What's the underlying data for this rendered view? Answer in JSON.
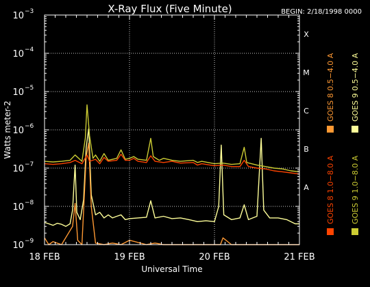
{
  "chart_data": {
    "type": "line",
    "title": "X-Ray Flux (Five Minute)",
    "begin_label": "BEGIN: 2/18/1998 0000",
    "xlabel": "Universal Time",
    "ylabel": "Watts meter-2",
    "y_scale": "log",
    "ylim": [
      1e-09,
      0.001
    ],
    "xlim_days": [
      0,
      3
    ],
    "y_ticks": [
      {
        "base": "10",
        "exp": "−3",
        "value": 0.001
      },
      {
        "base": "10",
        "exp": "−4",
        "value": 0.0001
      },
      {
        "base": "10",
        "exp": "−5",
        "value": 1e-05
      },
      {
        "base": "10",
        "exp": "−6",
        "value": 1e-06
      },
      {
        "base": "10",
        "exp": "−7",
        "value": 1e-07
      },
      {
        "base": "10",
        "exp": "−8",
        "value": 1e-08
      },
      {
        "base": "10",
        "exp": "−9",
        "value": 1e-09
      }
    ],
    "x_ticks": [
      {
        "label": "18 FEB",
        "day": 0
      },
      {
        "label": "19 FEB",
        "day": 1
      },
      {
        "label": "20 FEB",
        "day": 2
      },
      {
        "label": "21 FEB",
        "day": 3
      }
    ],
    "flare_classes": [
      {
        "label": "X",
        "value": 0.0001
      },
      {
        "label": "M",
        "value": 1e-05
      },
      {
        "label": "C",
        "value": 1e-06
      },
      {
        "label": "B",
        "value": 1e-07
      },
      {
        "label": "A",
        "value": 1e-08
      }
    ],
    "legend": [
      {
        "name": "GOES 8 1.0−8.0 A",
        "color": "#ff4400"
      },
      {
        "name": "GOES 8 0.5−4.0 A",
        "color": "#ff9933"
      },
      {
        "name": "GOES 9 1.0−8.0 A",
        "color": "#cccc33"
      },
      {
        "name": "GOES 9 0.5−4.0 A",
        "color": "#ffff99"
      }
    ],
    "series": [
      {
        "name": "GOES 8 1.0−8.0 A",
        "color": "#ff4400",
        "points": [
          [
            0,
            1.3e-07
          ],
          [
            0.1,
            1.25e-07
          ],
          [
            0.2,
            1.3e-07
          ],
          [
            0.3,
            1.4e-07
          ],
          [
            0.36,
            1.6e-07
          ],
          [
            0.44,
            1.3e-07
          ],
          [
            0.5,
            2.2e-07
          ],
          [
            0.53,
            1.5e-07
          ],
          [
            0.6,
            1.7e-07
          ],
          [
            0.65,
            1.3e-07
          ],
          [
            0.7,
            1.9e-07
          ],
          [
            0.75,
            1.5e-07
          ],
          [
            0.85,
            1.6e-07
          ],
          [
            0.9,
            2.3e-07
          ],
          [
            0.95,
            1.6e-07
          ],
          [
            1.0,
            1.6e-07
          ],
          [
            1.05,
            1.8e-07
          ],
          [
            1.1,
            1.5e-07
          ],
          [
            1.2,
            1.4e-07
          ],
          [
            1.25,
            2.1e-07
          ],
          [
            1.3,
            1.5e-07
          ],
          [
            1.4,
            1.4e-07
          ],
          [
            1.5,
            1.5e-07
          ],
          [
            1.6,
            1.35e-07
          ],
          [
            1.75,
            1.4e-07
          ],
          [
            1.8,
            1.2e-07
          ],
          [
            1.85,
            1.3e-07
          ],
          [
            2.0,
            1.15e-07
          ],
          [
            2.1,
            1.2e-07
          ],
          [
            2.2,
            1.1e-07
          ],
          [
            2.3,
            1.1e-07
          ],
          [
            2.35,
            1.6e-07
          ],
          [
            2.4,
            1.1e-07
          ],
          [
            2.5,
            1e-07
          ],
          [
            2.6,
            9.5e-08
          ],
          [
            2.7,
            8.5e-08
          ],
          [
            2.8,
            8e-08
          ],
          [
            2.9,
            7.5e-08
          ],
          [
            3.0,
            7e-08
          ]
        ]
      },
      {
        "name": "GOES 8 0.5−4.0 A",
        "color": "#ff9933",
        "points": [
          [
            0,
            1.5e-09
          ],
          [
            0.05,
            1e-09
          ],
          [
            0.1,
            1.2e-09
          ],
          [
            0.2,
            1e-09
          ],
          [
            0.33,
            3e-09
          ],
          [
            0.36,
            1.2e-08
          ],
          [
            0.39,
            1.3e-09
          ],
          [
            0.44,
            1e-09
          ],
          [
            0.49,
            2e-07
          ],
          [
            0.52,
            4.5e-07
          ],
          [
            0.55,
            1e-08
          ],
          [
            0.6,
            1.1e-09
          ],
          [
            0.7,
            1e-09
          ],
          [
            0.8,
            1.1e-09
          ],
          [
            0.9,
            1e-09
          ],
          [
            1.0,
            1.3e-09
          ],
          [
            1.2,
            1e-09
          ],
          [
            1.3,
            1.1e-09
          ],
          [
            1.4,
            1e-09
          ],
          [
            1.6,
            1e-09
          ],
          [
            1.85,
            1e-09
          ],
          [
            2.07,
            1e-09
          ],
          [
            2.1,
            1.5e-09
          ],
          [
            2.2,
            1e-09
          ],
          [
            2.4,
            1e-09
          ],
          [
            2.6,
            1e-09
          ],
          [
            2.8,
            1e-09
          ],
          [
            3.0,
            1e-09
          ]
        ]
      },
      {
        "name": "GOES 9 1.0−8.0 A",
        "color": "#cccc33",
        "points": [
          [
            0,
            1.5e-07
          ],
          [
            0.1,
            1.45e-07
          ],
          [
            0.2,
            1.5e-07
          ],
          [
            0.3,
            1.6e-07
          ],
          [
            0.36,
            2.2e-07
          ],
          [
            0.44,
            1.5e-07
          ],
          [
            0.48,
            6e-07
          ],
          [
            0.5,
            4.5e-06
          ],
          [
            0.53,
            7e-07
          ],
          [
            0.57,
            1.8e-07
          ],
          [
            0.6,
            2.2e-07
          ],
          [
            0.65,
            1.5e-07
          ],
          [
            0.7,
            2.4e-07
          ],
          [
            0.75,
            1.6e-07
          ],
          [
            0.85,
            1.8e-07
          ],
          [
            0.9,
            3e-07
          ],
          [
            0.95,
            1.7e-07
          ],
          [
            1.0,
            1.8e-07
          ],
          [
            1.05,
            2e-07
          ],
          [
            1.1,
            1.7e-07
          ],
          [
            1.2,
            1.6e-07
          ],
          [
            1.25,
            6e-07
          ],
          [
            1.28,
            2e-07
          ],
          [
            1.35,
            1.6e-07
          ],
          [
            1.4,
            1.8e-07
          ],
          [
            1.5,
            1.6e-07
          ],
          [
            1.6,
            1.5e-07
          ],
          [
            1.75,
            1.6e-07
          ],
          [
            1.8,
            1.4e-07
          ],
          [
            1.85,
            1.5e-07
          ],
          [
            2.0,
            1.3e-07
          ],
          [
            2.1,
            1.35e-07
          ],
          [
            2.2,
            1.25e-07
          ],
          [
            2.3,
            1.3e-07
          ],
          [
            2.35,
            3.5e-07
          ],
          [
            2.38,
            1.4e-07
          ],
          [
            2.5,
            1.2e-07
          ],
          [
            2.6,
            1.1e-07
          ],
          [
            2.7,
            1e-07
          ],
          [
            2.8,
            9.5e-08
          ],
          [
            2.9,
            8.5e-08
          ],
          [
            3.0,
            8e-08
          ]
        ]
      },
      {
        "name": "GOES 9 0.5−4.0 A",
        "color": "#ffff99",
        "points": [
          [
            0,
            3.8e-09
          ],
          [
            0.05,
            3.5e-09
          ],
          [
            0.1,
            3.2e-09
          ],
          [
            0.15,
            3.6e-09
          ],
          [
            0.2,
            3.4e-09
          ],
          [
            0.25,
            3e-09
          ],
          [
            0.3,
            3.5e-09
          ],
          [
            0.33,
            8e-09
          ],
          [
            0.36,
            1.2e-07
          ],
          [
            0.38,
            7e-09
          ],
          [
            0.42,
            4.5e-09
          ],
          [
            0.46,
            1.5e-08
          ],
          [
            0.49,
            3.5e-07
          ],
          [
            0.52,
            1.1e-06
          ],
          [
            0.55,
            2e-08
          ],
          [
            0.6,
            6e-09
          ],
          [
            0.65,
            7e-09
          ],
          [
            0.7,
            5e-09
          ],
          [
            0.75,
            6e-09
          ],
          [
            0.8,
            5e-09
          ],
          [
            0.85,
            5.5e-09
          ],
          [
            0.9,
            6e-09
          ],
          [
            0.95,
            4.5e-09
          ],
          [
            1.0,
            4.8e-09
          ],
          [
            1.1,
            5e-09
          ],
          [
            1.2,
            5.2e-09
          ],
          [
            1.25,
            1.4e-08
          ],
          [
            1.3,
            5e-09
          ],
          [
            1.4,
            5.5e-09
          ],
          [
            1.5,
            4.8e-09
          ],
          [
            1.6,
            5e-09
          ],
          [
            1.7,
            4.5e-09
          ],
          [
            1.8,
            4e-09
          ],
          [
            1.9,
            4.2e-09
          ],
          [
            2.0,
            4e-09
          ],
          [
            2.05,
            1e-08
          ],
          [
            2.08,
            4e-07
          ],
          [
            2.11,
            6e-09
          ],
          [
            2.2,
            4.5e-09
          ],
          [
            2.3,
            5e-09
          ],
          [
            2.35,
            1.1e-08
          ],
          [
            2.4,
            4.5e-09
          ],
          [
            2.5,
            5.5e-09
          ],
          [
            2.55,
            6e-07
          ],
          [
            2.58,
            8e-09
          ],
          [
            2.65,
            5e-09
          ],
          [
            2.75,
            5e-09
          ],
          [
            2.85,
            4.5e-09
          ],
          [
            2.95,
            3.5e-09
          ],
          [
            3.0,
            3.5e-09
          ]
        ]
      }
    ]
  }
}
